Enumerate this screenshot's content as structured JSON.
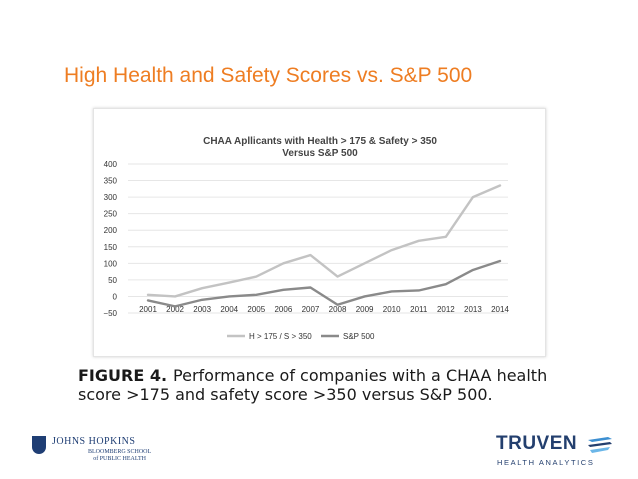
{
  "slide": {
    "title": "High Health and Safety Scores vs. S&P 500"
  },
  "chart_data": {
    "type": "line",
    "title": "CHAA Apllicants with Health > 175 & Safety > 350",
    "subtitle": "Versus S&P 500",
    "x": [
      2001,
      2002,
      2003,
      2004,
      2005,
      2006,
      2007,
      2008,
      2009,
      2010,
      2011,
      2012,
      2013,
      2014
    ],
    "series": [
      {
        "name": "H > 175 / S > 350",
        "color": "#c3c3c3",
        "values": [
          5,
          0,
          25,
          42,
          60,
          100,
          125,
          60,
          100,
          140,
          168,
          180,
          300,
          335
        ]
      },
      {
        "name": "S&P 500",
        "color": "#8a8a8a",
        "values": [
          -12,
          -30,
          -10,
          0,
          5,
          20,
          27,
          -25,
          0,
          15,
          18,
          37,
          80,
          107
        ]
      }
    ],
    "yticks": [
      "400",
      "350",
      "300",
      "250",
      "200",
      "150",
      "100",
      "50",
      "0",
      "−50"
    ],
    "ylim": [
      -50,
      400
    ],
    "grid": true,
    "legend": "bottom"
  },
  "caption": {
    "label": "FIGURE 4.",
    "text": "Performance of companies with a CHAA health score >175 and safety score >350 versus S&P 500."
  },
  "logos": {
    "jhu": {
      "name": "JOHNS HOPKINS",
      "line1": "BLOOMBERG SCHOOL",
      "line2": "of PUBLIC HEALTH"
    },
    "truven": {
      "name": "TRUVEN",
      "tagline": "HEALTH ANALYTICS"
    }
  }
}
